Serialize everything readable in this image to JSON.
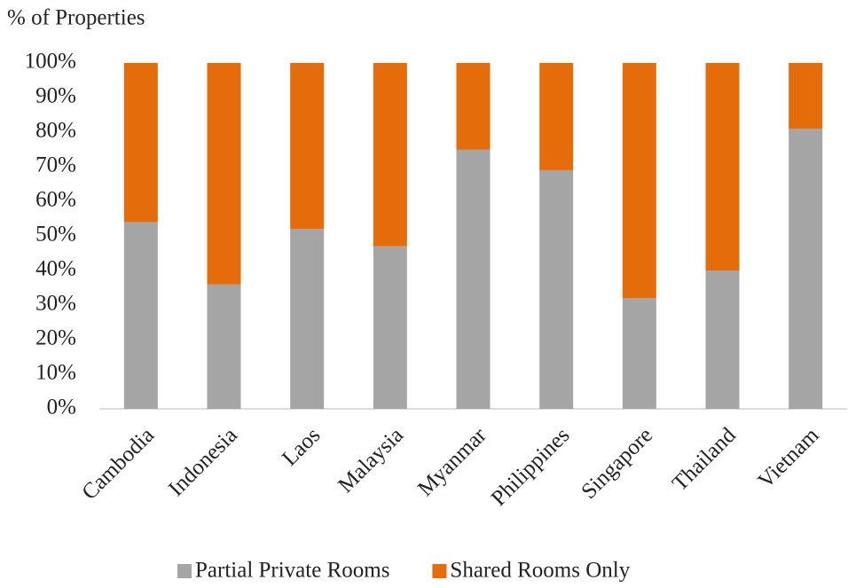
{
  "chart_data": {
    "type": "stacked_bar",
    "y_axis_title": "% of Properties",
    "categories": [
      "Cambodia",
      "Indonesia",
      "Laos",
      "Malaysia",
      "Myanmar",
      "Philippines",
      "Singapore",
      "Thailand",
      "Vietnam"
    ],
    "series": [
      {
        "name": "Partial Private Rooms",
        "color": "#a5a5a5",
        "values": [
          54,
          36,
          52,
          47,
          75,
          69,
          32,
          40,
          81
        ]
      },
      {
        "name": "Shared Rooms Only",
        "color": "#e46c0a",
        "values": [
          46,
          64,
          48,
          53,
          25,
          31,
          68,
          60,
          19
        ]
      }
    ],
    "ylim": [
      0,
      100
    ],
    "yticks": [
      {
        "value": 0,
        "label": "0%"
      },
      {
        "value": 10,
        "label": "10%"
      },
      {
        "value": 20,
        "label": "20%"
      },
      {
        "value": 30,
        "label": "30%"
      },
      {
        "value": 40,
        "label": "40%"
      },
      {
        "value": 50,
        "label": "50%"
      },
      {
        "value": 60,
        "label": "60%"
      },
      {
        "value": 70,
        "label": "70%"
      },
      {
        "value": 80,
        "label": "80%"
      },
      {
        "value": 90,
        "label": "90%"
      },
      {
        "value": 100,
        "label": "100%"
      }
    ],
    "grid": false,
    "legend": "bottom"
  }
}
